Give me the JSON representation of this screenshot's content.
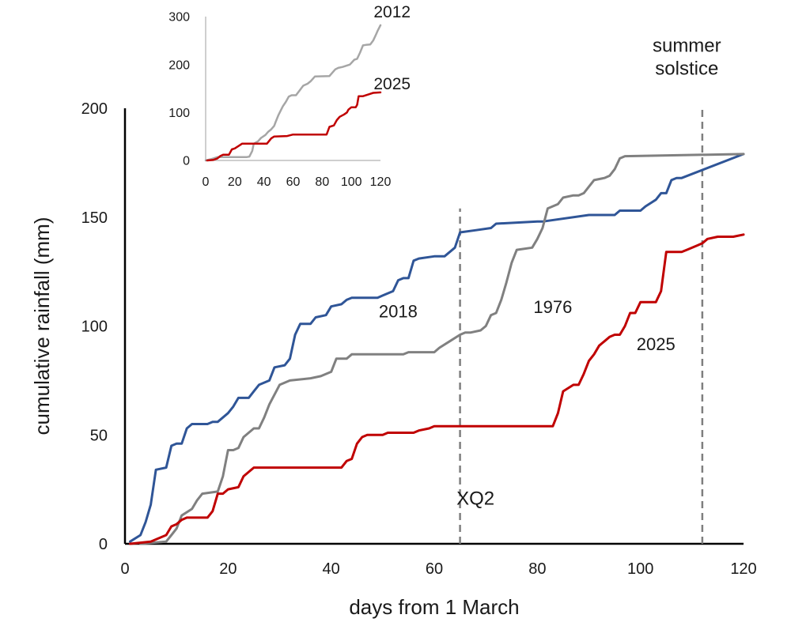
{
  "chart_data": [
    {
      "type": "line",
      "title": "",
      "xlabel": "days from 1 March",
      "ylabel": "cumulative rainfall (mm)",
      "xlim": [
        0,
        120
      ],
      "ylim": [
        0,
        200
      ],
      "xticks": [
        0,
        20,
        40,
        60,
        80,
        100,
        120
      ],
      "yticks": [
        0,
        50,
        100,
        150,
        200
      ],
      "grid": false,
      "legend": "none (series labelled inline)",
      "colors": {
        "2018": "#2f5597",
        "1976": "#808080",
        "2025": "#c00000",
        "marker": "#7f7f7f"
      },
      "series": [
        {
          "name": "2018",
          "points": [
            [
              1,
              1
            ],
            [
              3,
              4
            ],
            [
              4,
              10
            ],
            [
              5,
              18
            ],
            [
              6,
              34
            ],
            [
              8,
              35
            ],
            [
              9,
              45
            ],
            [
              10,
              46
            ],
            [
              11,
              46
            ],
            [
              12,
              53
            ],
            [
              13,
              55
            ],
            [
              16,
              55
            ],
            [
              17,
              56
            ],
            [
              18,
              56
            ],
            [
              19,
              58
            ],
            [
              20,
              60
            ],
            [
              21,
              63
            ],
            [
              22,
              67
            ],
            [
              24,
              67
            ],
            [
              25,
              70
            ],
            [
              26,
              73
            ],
            [
              28,
              75
            ],
            [
              29,
              81
            ],
            [
              31,
              82
            ],
            [
              32,
              85
            ],
            [
              33,
              96
            ],
            [
              34,
              101
            ],
            [
              36,
              101
            ],
            [
              37,
              104
            ],
            [
              39,
              105
            ],
            [
              40,
              109
            ],
            [
              42,
              110
            ],
            [
              43,
              112
            ],
            [
              44,
              113
            ],
            [
              49,
              113
            ],
            [
              50,
              114
            ],
            [
              52,
              116
            ],
            [
              53,
              121
            ],
            [
              54,
              122
            ],
            [
              55,
              122
            ],
            [
              56,
              130
            ],
            [
              57,
              131
            ],
            [
              60,
              132
            ],
            [
              62,
              132
            ],
            [
              64,
              136
            ],
            [
              65,
              143
            ],
            [
              68,
              144
            ],
            [
              71,
              145
            ],
            [
              72,
              147
            ],
            [
              80,
              148
            ],
            [
              81,
              148
            ],
            [
              90,
              151
            ],
            [
              95,
              151
            ],
            [
              96,
              153
            ],
            [
              100,
              153
            ],
            [
              101,
              155
            ],
            [
              103,
              158
            ],
            [
              104,
              161
            ],
            [
              105,
              161
            ],
            [
              106,
              167
            ],
            [
              107,
              168
            ],
            [
              108,
              168
            ],
            [
              120,
              179
            ]
          ]
        },
        {
          "name": "1976",
          "points": [
            [
              3,
              0
            ],
            [
              8,
              1
            ],
            [
              9,
              4
            ],
            [
              10,
              7
            ],
            [
              11,
              13
            ],
            [
              13,
              16
            ],
            [
              14,
              20
            ],
            [
              15,
              23
            ],
            [
              18,
              24
            ],
            [
              19,
              31
            ],
            [
              20,
              43
            ],
            [
              21,
              43
            ],
            [
              22,
              44
            ],
            [
              23,
              49
            ],
            [
              24,
              51
            ],
            [
              25,
              53
            ],
            [
              26,
              53
            ],
            [
              27,
              58
            ],
            [
              28,
              64
            ],
            [
              30,
              73
            ],
            [
              31,
              74
            ],
            [
              32,
              75
            ],
            [
              36,
              76
            ],
            [
              38,
              77
            ],
            [
              40,
              79
            ],
            [
              41,
              85
            ],
            [
              43,
              85
            ],
            [
              44,
              87
            ],
            [
              54,
              87
            ],
            [
              55,
              88
            ],
            [
              60,
              88
            ],
            [
              61,
              90
            ],
            [
              63,
              93
            ],
            [
              65,
              96
            ],
            [
              66,
              97
            ],
            [
              67,
              97
            ],
            [
              69,
              98
            ],
            [
              70,
              100
            ],
            [
              71,
              105
            ],
            [
              72,
              106
            ],
            [
              73,
              112
            ],
            [
              74,
              120
            ],
            [
              75,
              129
            ],
            [
              76,
              135
            ],
            [
              79,
              136
            ],
            [
              80,
              140
            ],
            [
              81,
              145
            ],
            [
              82,
              154
            ],
            [
              84,
              156
            ],
            [
              85,
              159
            ],
            [
              87,
              160
            ],
            [
              88,
              160
            ],
            [
              89,
              161
            ],
            [
              90,
              164
            ],
            [
              91,
              167
            ],
            [
              93,
              168
            ],
            [
              94,
              169
            ],
            [
              95,
              172
            ],
            [
              96,
              177
            ],
            [
              97,
              178
            ],
            [
              120,
              179
            ]
          ]
        },
        {
          "name": "2025",
          "points": [
            [
              1,
              0
            ],
            [
              5,
              1
            ],
            [
              8,
              4
            ],
            [
              9,
              8
            ],
            [
              10,
              9
            ],
            [
              11,
              11
            ],
            [
              12,
              12
            ],
            [
              13,
              12
            ],
            [
              16,
              12
            ],
            [
              17,
              15
            ],
            [
              18,
              23
            ],
            [
              19,
              23
            ],
            [
              20,
              25
            ],
            [
              22,
              26
            ],
            [
              23,
              31
            ],
            [
              24,
              33
            ],
            [
              25,
              35
            ],
            [
              42,
              35
            ],
            [
              43,
              38
            ],
            [
              44,
              39
            ],
            [
              45,
              46
            ],
            [
              46,
              49
            ],
            [
              47,
              50
            ],
            [
              50,
              50
            ],
            [
              51,
              51
            ],
            [
              56,
              51
            ],
            [
              57,
              52
            ],
            [
              59,
              53
            ],
            [
              60,
              54
            ],
            [
              62,
              54
            ],
            [
              63,
              54
            ],
            [
              83,
              54
            ],
            [
              84,
              60
            ],
            [
              85,
              70
            ],
            [
              87,
              73
            ],
            [
              88,
              73
            ],
            [
              89,
              78
            ],
            [
              90,
              84
            ],
            [
              91,
              87
            ],
            [
              92,
              91
            ],
            [
              93,
              93
            ],
            [
              94,
              95
            ],
            [
              95,
              96
            ],
            [
              96,
              96
            ],
            [
              97,
              100
            ],
            [
              98,
              106
            ],
            [
              99,
              106
            ],
            [
              100,
              111
            ],
            [
              103,
              111
            ],
            [
              104,
              116
            ],
            [
              105,
              134
            ],
            [
              108,
              134
            ],
            [
              109,
              135
            ],
            [
              111,
              137
            ],
            [
              112,
              138
            ],
            [
              113,
              140
            ],
            [
              115,
              141
            ],
            [
              118,
              141
            ],
            [
              120,
              142
            ]
          ]
        }
      ],
      "series_labels": [
        {
          "series": "2018",
          "x": 53,
          "y": 104
        },
        {
          "series": "1976",
          "x": 83,
          "y": 106
        },
        {
          "series": "2025",
          "x": 103,
          "y": 89
        }
      ],
      "annotations": [
        {
          "kind": "vertical-dashed-line",
          "x": 65,
          "y_range": [
            0,
            154
          ],
          "label": "XQ2",
          "label_at": [
            68,
            18
          ]
        },
        {
          "kind": "vertical-dashed-line",
          "x": 112,
          "y_range": [
            0,
            200
          ],
          "label": "summer\nsolstice",
          "label_at": [
            109,
            226
          ]
        }
      ]
    },
    {
      "type": "line",
      "role": "inset",
      "title": "",
      "xlabel": "",
      "ylabel": "",
      "xlim": [
        0,
        120
      ],
      "ylim": [
        0,
        300
      ],
      "xticks": [
        0,
        20,
        40,
        60,
        80,
        100,
        120
      ],
      "yticks": [
        0,
        100,
        200,
        300
      ],
      "grid": false,
      "legend": "none (series labelled inline)",
      "colors": {
        "2012": "#a6a6a6",
        "2025": "#c00000"
      },
      "series": [
        {
          "name": "2012",
          "points": [
            [
              0,
              0
            ],
            [
              4,
              3
            ],
            [
              8,
              7
            ],
            [
              28,
              7
            ],
            [
              30,
              8
            ],
            [
              32,
              20
            ],
            [
              33,
              35
            ],
            [
              36,
              40
            ],
            [
              38,
              47
            ],
            [
              41,
              53
            ],
            [
              43,
              60
            ],
            [
              45,
              65
            ],
            [
              47,
              72
            ],
            [
              48,
              80
            ],
            [
              50,
              95
            ],
            [
              53,
              113
            ],
            [
              55,
              122
            ],
            [
              57,
              133
            ],
            [
              59,
              136
            ],
            [
              62,
              136
            ],
            [
              63,
              140
            ],
            [
              65,
              148
            ],
            [
              67,
              156
            ],
            [
              70,
              160
            ],
            [
              72,
              165
            ],
            [
              75,
              175
            ],
            [
              85,
              176
            ],
            [
              89,
              190
            ],
            [
              91,
              193
            ],
            [
              94,
              195
            ],
            [
              99,
              200
            ],
            [
              102,
              210
            ],
            [
              104,
              212
            ],
            [
              106,
              225
            ],
            [
              108,
              240
            ],
            [
              110,
              241
            ],
            [
              113,
              242
            ],
            [
              115,
              250
            ],
            [
              117,
              263
            ],
            [
              118,
              270
            ],
            [
              120,
              282
            ]
          ]
        },
        {
          "name": "2025",
          "points": [
            [
              1,
              0
            ],
            [
              5,
              1
            ],
            [
              8,
              4
            ],
            [
              10,
              9
            ],
            [
              12,
              12
            ],
            [
              16,
              12
            ],
            [
              18,
              23
            ],
            [
              20,
              25
            ],
            [
              23,
              31
            ],
            [
              25,
              35
            ],
            [
              42,
              35
            ],
            [
              45,
              46
            ],
            [
              47,
              50
            ],
            [
              56,
              51
            ],
            [
              60,
              54
            ],
            [
              83,
              54
            ],
            [
              85,
              70
            ],
            [
              88,
              73
            ],
            [
              90,
              84
            ],
            [
              92,
              91
            ],
            [
              95,
              96
            ],
            [
              97,
              100
            ],
            [
              98,
              106
            ],
            [
              100,
              111
            ],
            [
              103,
              111
            ],
            [
              104,
              116
            ],
            [
              105,
              134
            ],
            [
              108,
              134
            ],
            [
              112,
              138
            ],
            [
              115,
              141
            ],
            [
              120,
              142
            ]
          ]
        }
      ],
      "series_labels": [
        {
          "series": "2012",
          "x": 128,
          "y": 298
        },
        {
          "series": "2025",
          "x": 128,
          "y": 148
        }
      ]
    }
  ]
}
